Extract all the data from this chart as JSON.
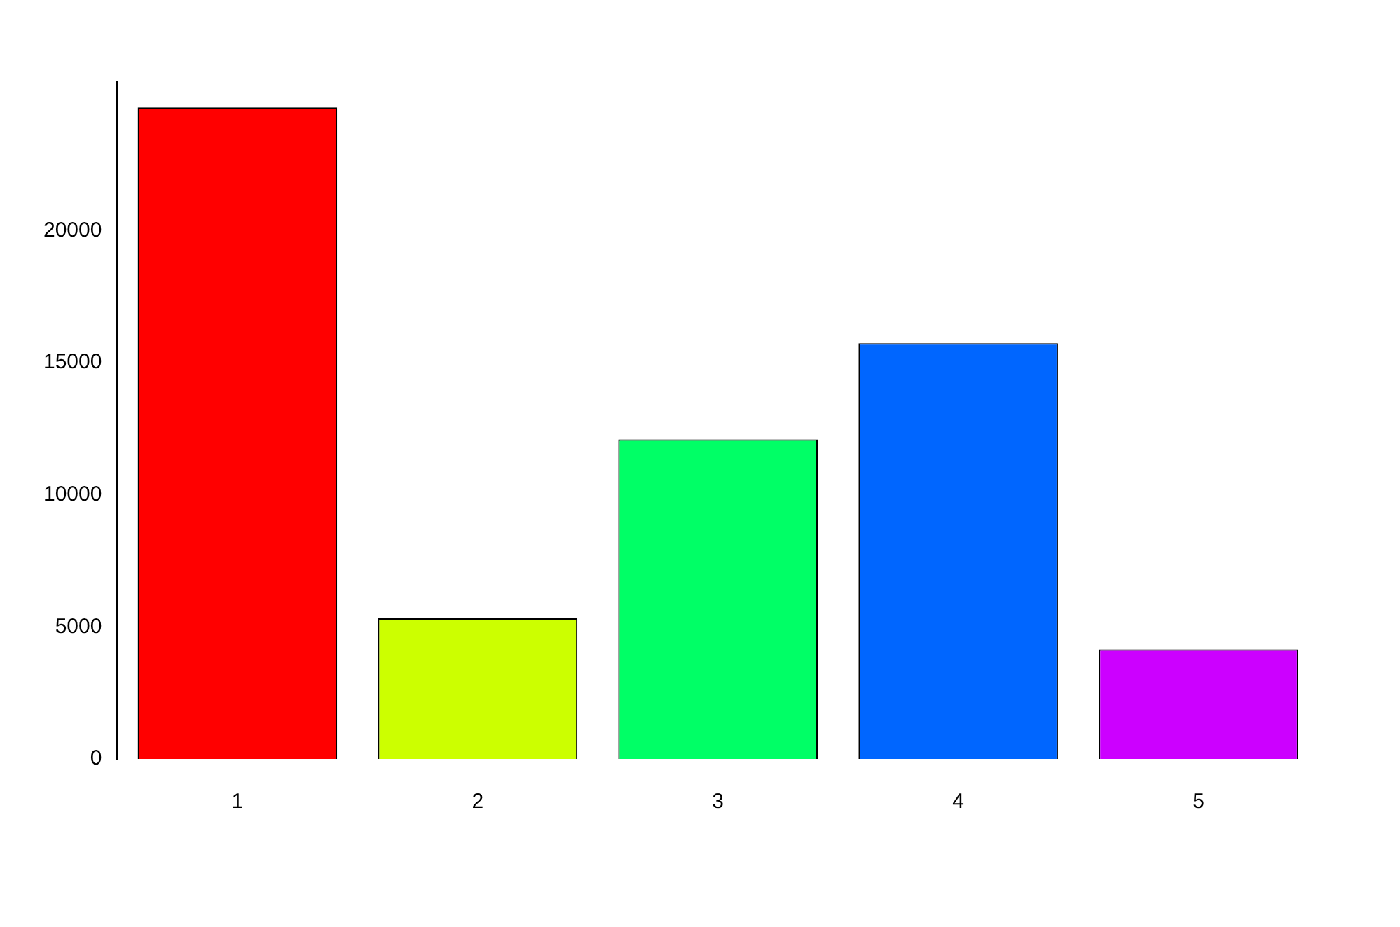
{
  "chart_data": {
    "type": "bar",
    "categories": [
      "1",
      "2",
      "3",
      "4",
      "5"
    ],
    "series": [
      {
        "values": [
          24670,
          5330,
          12100,
          15740,
          4150
        ],
        "colors": [
          "#ff0000",
          "#ccff00",
          "#00ff66",
          "#0066ff",
          "#cc00ff"
        ]
      }
    ],
    "ylim": [
      0,
      25660
    ],
    "yticks": [
      0,
      5000,
      10000,
      15000,
      20000
    ],
    "grid": false,
    "legend": false
  }
}
